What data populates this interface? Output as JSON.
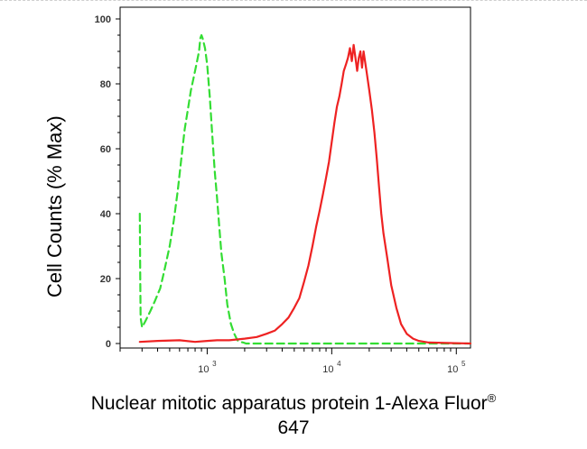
{
  "chart_data": {
    "type": "line",
    "title": "",
    "ylabel": "Cell Counts (% Max)",
    "xlabel": {
      "main": "Nuclear mitotic apparatus protein 1-Alexa Fluor",
      "superscript": "®",
      "line2": "647"
    },
    "xscale": "log",
    "xlim": [
      200,
      130000
    ],
    "ylim": [
      0,
      100
    ],
    "y_ticks": [
      0,
      20,
      40,
      60,
      80,
      100
    ],
    "y_tick_labels": [
      "0",
      "20",
      "40",
      "60",
      "80",
      "100"
    ],
    "x_ticks": [
      1000,
      10000,
      100000
    ],
    "x_tick_labels": [
      {
        "base": "10",
        "exp": "3"
      },
      {
        "base": "10",
        "exp": "4"
      },
      {
        "base": "10",
        "exp": "5"
      }
    ],
    "grid": false,
    "legend": "none",
    "series": [
      {
        "color": "#33dd33",
        "dashed": true,
        "x": [
          288,
          290,
          292,
          300,
          320,
          350,
          380,
          420,
          450,
          500,
          540,
          580,
          620,
          660,
          700,
          740,
          780,
          820,
          860,
          880,
          900,
          920,
          960,
          1000,
          1050,
          1100,
          1150,
          1200,
          1250,
          1300,
          1380,
          1450,
          1550,
          1650,
          1750,
          1850,
          1950,
          2050,
          2200,
          3000,
          5000,
          10000,
          30000,
          130000
        ],
        "y": [
          40,
          20,
          8,
          5,
          7,
          10,
          13,
          17,
          22,
          30,
          38,
          47,
          57,
          66,
          72,
          78,
          82,
          86,
          90,
          94,
          95,
          94,
          91,
          86,
          76,
          64,
          53,
          45,
          36,
          28,
          20,
          12,
          6,
          3,
          1,
          0.5,
          0.3,
          0,
          0,
          0,
          0,
          0,
          0,
          0
        ]
      },
      {
        "color": "#ee2222",
        "dashed": false,
        "x": [
          288,
          400,
          600,
          800,
          1000,
          1200,
          1500,
          2000,
          2500,
          3000,
          3500,
          4000,
          4500,
          5000,
          5500,
          6000,
          6500,
          7000,
          7500,
          8000,
          8500,
          9000,
          9500,
          10000,
          10500,
          11000,
          11500,
          12000,
          12500,
          13000,
          13500,
          14000,
          14500,
          15000,
          15500,
          16000,
          16500,
          17000,
          17500,
          18000,
          19000,
          20000,
          21000,
          22000,
          23000,
          24000,
          25000,
          26000,
          28000,
          30000,
          33000,
          36000,
          40000,
          45000,
          50000,
          60000,
          130000
        ],
        "y": [
          0.5,
          0.8,
          1,
          0.5,
          0.8,
          1,
          1,
          1.5,
          2,
          3,
          4,
          6,
          8,
          11,
          14,
          19,
          24,
          30,
          36,
          41,
          46,
          51,
          56,
          62,
          68,
          73,
          76,
          80,
          84,
          86,
          88,
          91,
          87,
          92,
          88,
          84,
          88,
          90,
          85,
          90,
          84,
          78,
          72,
          65,
          57,
          48,
          40,
          34,
          26,
          18,
          11,
          6,
          3,
          1.5,
          0.8,
          0.3,
          0
        ]
      }
    ]
  }
}
